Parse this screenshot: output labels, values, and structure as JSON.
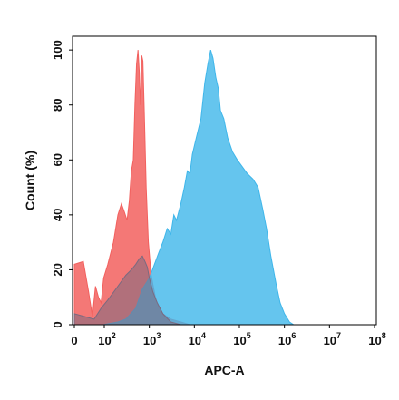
{
  "chart_data": {
    "type": "area",
    "title": "",
    "xlabel": "APC-A",
    "ylabel": "Count (%)",
    "x_scale": "log",
    "x_ticks": [
      {
        "value": 0,
        "base": "0",
        "exp": ""
      },
      {
        "value": 100,
        "base": "10",
        "exp": "2"
      },
      {
        "value": 1000,
        "base": "10",
        "exp": "3"
      },
      {
        "value": 10000,
        "base": "10",
        "exp": "4"
      },
      {
        "value": 100000,
        "base": "10",
        "exp": "5"
      },
      {
        "value": 1000000,
        "base": "10",
        "exp": "6"
      },
      {
        "value": 10000000,
        "base": "10",
        "exp": "7"
      },
      {
        "value": 100000000,
        "base": "10",
        "exp": "8"
      }
    ],
    "y_ticks": [
      "0",
      "20",
      "40",
      "60",
      "80",
      "100"
    ],
    "ylim": [
      0,
      105
    ],
    "grid": false,
    "legend": "none",
    "series": [
      {
        "color": "#f2605e",
        "points": [
          [
            0,
            22
          ],
          [
            3,
            23
          ],
          [
            8,
            12
          ],
          [
            15,
            3
          ],
          [
            25,
            14
          ],
          [
            40,
            10
          ],
          [
            60,
            8
          ],
          [
            90,
            17
          ],
          [
            120,
            22
          ],
          [
            160,
            30
          ],
          [
            200,
            40
          ],
          [
            240,
            44
          ],
          [
            280,
            41
          ],
          [
            320,
            38
          ],
          [
            360,
            45
          ],
          [
            400,
            56
          ],
          [
            440,
            60
          ],
          [
            480,
            80
          ],
          [
            520,
            95
          ],
          [
            560,
            100
          ],
          [
            600,
            92
          ],
          [
            640,
            80
          ],
          [
            680,
            98
          ],
          [
            720,
            96
          ],
          [
            780,
            75
          ],
          [
            850,
            50
          ],
          [
            950,
            30
          ],
          [
            1100,
            18
          ],
          [
            1400,
            9
          ],
          [
            2000,
            4
          ],
          [
            3000,
            2
          ],
          [
            5000,
            1
          ],
          [
            8000,
            0
          ]
        ]
      },
      {
        "color": "#3fb6ea",
        "points": [
          [
            0,
            0
          ],
          [
            80,
            0
          ],
          [
            200,
            1
          ],
          [
            300,
            2
          ],
          [
            500,
            6
          ],
          [
            700,
            13
          ],
          [
            1000,
            17
          ],
          [
            1300,
            22
          ],
          [
            1600,
            26
          ],
          [
            2000,
            30
          ],
          [
            2500,
            35
          ],
          [
            3000,
            33
          ],
          [
            3500,
            40
          ],
          [
            4000,
            38
          ],
          [
            5000,
            44
          ],
          [
            6000,
            50
          ],
          [
            7000,
            56
          ],
          [
            8000,
            55
          ],
          [
            9000,
            62
          ],
          [
            11000,
            68
          ],
          [
            14000,
            75
          ],
          [
            17000,
            88
          ],
          [
            20000,
            95
          ],
          [
            23000,
            100
          ],
          [
            26000,
            97
          ],
          [
            30000,
            90
          ],
          [
            34000,
            86
          ],
          [
            38000,
            78
          ],
          [
            45000,
            75
          ],
          [
            55000,
            68
          ],
          [
            70000,
            63
          ],
          [
            90000,
            60
          ],
          [
            110000,
            58
          ],
          [
            150000,
            55
          ],
          [
            200000,
            53
          ],
          [
            260000,
            50
          ],
          [
            330000,
            42
          ],
          [
            400000,
            35
          ],
          [
            500000,
            25
          ],
          [
            650000,
            15
          ],
          [
            800000,
            8
          ],
          [
            1000000,
            4
          ],
          [
            1300000,
            1
          ],
          [
            1600000,
            0
          ]
        ]
      },
      {
        "color": "#7a6a80",
        "points": [
          [
            0,
            4
          ],
          [
            20,
            2
          ],
          [
            60,
            6
          ],
          [
            120,
            9
          ],
          [
            200,
            14
          ],
          [
            300,
            18
          ],
          [
            400,
            20
          ],
          [
            500,
            22
          ],
          [
            600,
            24
          ],
          [
            700,
            25
          ],
          [
            800,
            23
          ],
          [
            900,
            21
          ],
          [
            1000,
            17
          ],
          [
            1200,
            12
          ],
          [
            1500,
            8
          ],
          [
            2000,
            4
          ],
          [
            3000,
            1
          ],
          [
            5000,
            0
          ]
        ]
      }
    ]
  }
}
